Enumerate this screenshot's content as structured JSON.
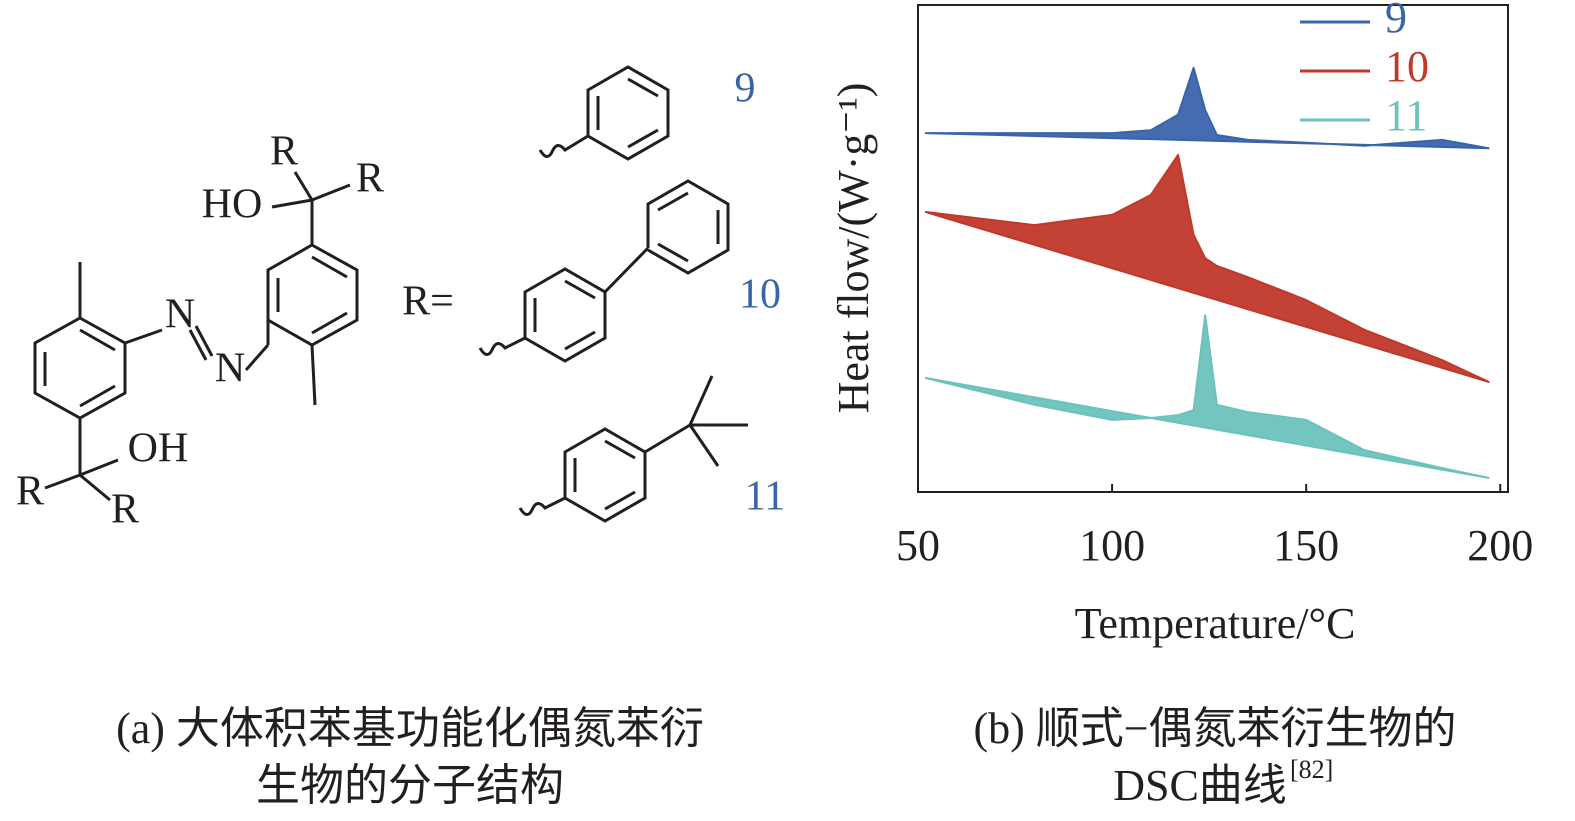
{
  "diagram": {
    "substituent_prefix": "R=",
    "labels": {
      "r_top_1": "R",
      "r_top_2": "R",
      "ho": "HO",
      "oh": "OH",
      "r_bottom_1": "R",
      "r_bottom_2": "R",
      "n_1": "N",
      "n_2": "N"
    },
    "compounds": [
      "9",
      "10",
      "11"
    ]
  },
  "chart_data": {
    "type": "line",
    "xlabel": "Temperature/°C",
    "ylabel": "Heat flow/(W·g⁻¹)",
    "x": [
      52,
      80,
      100,
      110,
      117,
      121,
      124,
      127,
      135,
      150,
      165,
      185,
      197
    ],
    "series": [
      {
        "name": "9",
        "color": "#3a64aa",
        "values": [
          73.7,
          73.7,
          73.7,
          74.3,
          77.5,
          87.1,
          78.4,
          73.3,
          72.3,
          71.7,
          71.1,
          72.3,
          70.6
        ]
      },
      {
        "name": "10",
        "color": "#c0382a",
        "values": [
          57.5,
          54.8,
          56.9,
          61.0,
          69.2,
          52.8,
          48.0,
          46.4,
          44.1,
          39.4,
          33.3,
          27.1,
          22.6
        ]
      },
      {
        "name": "11",
        "color": "#6cc2bd",
        "values": [
          23.4,
          17.9,
          14.8,
          15.2,
          15.8,
          16.8,
          36.3,
          17.9,
          16.4,
          14.8,
          8.6,
          4.9,
          2.9
        ]
      }
    ],
    "xlim": [
      50,
      202
    ],
    "xticks": [
      50,
      100,
      150,
      200
    ],
    "ylim": [
      0,
      100
    ],
    "legend": "upper right"
  },
  "captions": {
    "a": [
      "(a) 大体积苯基功能化偶氮苯衍",
      "生物的分子结构"
    ],
    "b": [
      "(b) 顺式−偶氮苯衍生物的",
      "DSC曲线"
    ],
    "b_ref": "[82]"
  }
}
